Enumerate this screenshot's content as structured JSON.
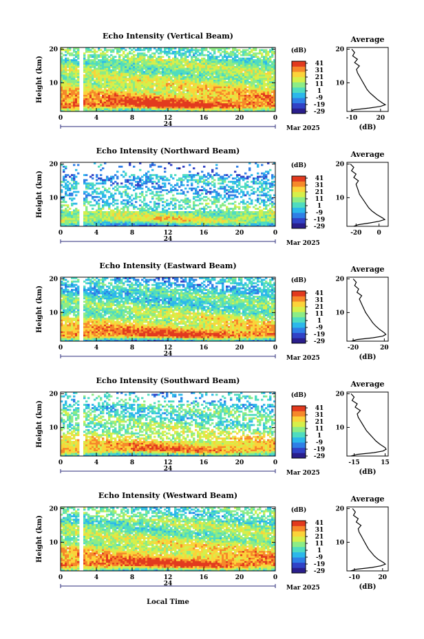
{
  "chart_data": [
    {
      "type": "heatmap",
      "title": "Echo Intensity (Vertical Beam)",
      "ylabel": "Height (km)",
      "x_ticks": [
        "0",
        "4",
        "8",
        "12",
        "16",
        "20",
        "0"
      ],
      "date_label": "24",
      "month_label": "Mar 2025",
      "y_ticks": [
        "20",
        "10"
      ],
      "ylim": [
        1.5,
        20.5
      ],
      "xlim": [
        0,
        24
      ],
      "colorbar": {
        "label": "(dB)",
        "ticks": [
          "41",
          "31",
          "21",
          "11",
          "1",
          "-9",
          "-19",
          "-29"
        ],
        "range": [
          -29,
          41
        ]
      },
      "data_gap_hour": 2.3,
      "average": {
        "title": "Average",
        "xlabel": "(dB)",
        "x_ticks": [
          "-10",
          "20"
        ],
        "xlim": [
          -15,
          28
        ],
        "profile": [
          [
            1.5,
            -11
          ],
          [
            2,
            -8
          ],
          [
            2.5,
            8
          ],
          [
            3,
            20
          ],
          [
            3.5,
            25
          ],
          [
            4,
            22
          ],
          [
            5,
            17
          ],
          [
            6,
            13
          ],
          [
            7,
            9
          ],
          [
            8,
            6
          ],
          [
            9,
            4
          ],
          [
            10,
            2
          ],
          [
            11,
            0
          ],
          [
            12,
            -2
          ],
          [
            13,
            -4
          ],
          [
            14,
            -5
          ],
          [
            15,
            -2
          ],
          [
            16,
            -7
          ],
          [
            17,
            -4
          ],
          [
            18,
            -9
          ],
          [
            19,
            -7
          ],
          [
            20,
            -10
          ]
        ]
      }
    },
    {
      "type": "heatmap",
      "title": "Echo Intensity (Northward Beam)",
      "ylabel": "Height (km)",
      "x_ticks": [
        "0",
        "4",
        "8",
        "12",
        "16",
        "20",
        "0"
      ],
      "date_label": "24",
      "month_label": "Mar 2025",
      "y_ticks": [
        "20",
        "10"
      ],
      "ylim": [
        1.5,
        20.5
      ],
      "xlim": [
        0,
        24
      ],
      "colorbar": {
        "label": "(dB)",
        "ticks": [
          "41",
          "31",
          "21",
          "11",
          "1",
          "-9",
          "-19",
          "-29"
        ],
        "range": [
          -29,
          41
        ]
      },
      "data_gap_hour": 2.3,
      "average": {
        "title": "Average",
        "xlabel": "",
        "x_ticks": [
          "-20",
          "0"
        ],
        "xlim": [
          -28,
          8
        ],
        "profile": [
          [
            1.5,
            -22
          ],
          [
            2,
            -18
          ],
          [
            2.5,
            -8
          ],
          [
            3,
            0
          ],
          [
            3.5,
            5
          ],
          [
            4,
            3
          ],
          [
            5,
            -2
          ],
          [
            6,
            -6
          ],
          [
            7,
            -9
          ],
          [
            8,
            -11
          ],
          [
            9,
            -13
          ],
          [
            10,
            -15
          ],
          [
            11,
            -17
          ],
          [
            12,
            -18
          ],
          [
            13,
            -19
          ],
          [
            14,
            -20
          ],
          [
            15,
            -18
          ],
          [
            16,
            -22
          ],
          [
            17,
            -20
          ],
          [
            18,
            -24
          ],
          [
            19,
            -22
          ],
          [
            20,
            -25
          ]
        ]
      }
    },
    {
      "type": "heatmap",
      "title": "Echo Intensity (Eastward Beam)",
      "ylabel": "Height (km)",
      "x_ticks": [
        "0",
        "4",
        "8",
        "12",
        "16",
        "20",
        "0"
      ],
      "date_label": "24",
      "month_label": "Mar 2025",
      "y_ticks": [
        "20",
        "10"
      ],
      "ylim": [
        1.5,
        20.5
      ],
      "xlim": [
        0,
        24
      ],
      "colorbar": {
        "label": "(dB)",
        "ticks": [
          "41",
          "31",
          "21",
          "11",
          "1",
          "-9",
          "-19",
          "-29"
        ],
        "range": [
          -29,
          41
        ]
      },
      "data_gap_hour": 2.3,
      "average": {
        "title": "Average",
        "xlabel": "(dB)",
        "x_ticks": [
          "-20",
          "20"
        ],
        "xlim": [
          -28,
          25
        ],
        "profile": [
          [
            1.5,
            -22
          ],
          [
            2,
            -15
          ],
          [
            2.5,
            5
          ],
          [
            3,
            18
          ],
          [
            3.5,
            22
          ],
          [
            4,
            20
          ],
          [
            5,
            14
          ],
          [
            6,
            9
          ],
          [
            7,
            5
          ],
          [
            8,
            2
          ],
          [
            9,
            -1
          ],
          [
            10,
            -4
          ],
          [
            11,
            -6
          ],
          [
            12,
            -8
          ],
          [
            13,
            -10
          ],
          [
            14,
            -12
          ],
          [
            15,
            -9
          ],
          [
            16,
            -15
          ],
          [
            17,
            -13
          ],
          [
            18,
            -18
          ],
          [
            19,
            -16
          ],
          [
            20,
            -20
          ]
        ]
      }
    },
    {
      "type": "heatmap",
      "title": "Echo Intensity (Southward Beam)",
      "ylabel": "Height (km)",
      "x_ticks": [
        "0",
        "4",
        "8",
        "12",
        "16",
        "20",
        "0"
      ],
      "date_label": "24",
      "month_label": "Mar 2025",
      "y_ticks": [
        "20",
        "10"
      ],
      "ylim": [
        1.5,
        20.5
      ],
      "xlim": [
        0,
        24
      ],
      "colorbar": {
        "label": "(dB)",
        "ticks": [
          "41",
          "31",
          "21",
          "11",
          "1",
          "-9",
          "-19",
          "-29"
        ],
        "range": [
          -29,
          41
        ]
      },
      "data_gap_hour": 2.3,
      "average": {
        "title": "Average",
        "xlabel": "(dB)",
        "x_ticks": [
          "-15",
          "15"
        ],
        "xlim": [
          -22,
          18
        ],
        "profile": [
          [
            1.5,
            -18
          ],
          [
            2,
            -12
          ],
          [
            2.5,
            4
          ],
          [
            3,
            13
          ],
          [
            3.5,
            16
          ],
          [
            4,
            15
          ],
          [
            5,
            10
          ],
          [
            6,
            6
          ],
          [
            7,
            3
          ],
          [
            8,
            0
          ],
          [
            9,
            -3
          ],
          [
            10,
            -5
          ],
          [
            11,
            -7
          ],
          [
            12,
            -9
          ],
          [
            13,
            -11
          ],
          [
            14,
            -12
          ],
          [
            15,
            -9
          ],
          [
            16,
            -14
          ],
          [
            17,
            -12
          ],
          [
            18,
            -17
          ],
          [
            19,
            -15
          ],
          [
            20,
            -18
          ]
        ]
      }
    },
    {
      "type": "heatmap",
      "title": "Echo Intensity (Westward Beam)",
      "ylabel": "Height (km)",
      "x_ticks": [
        "0",
        "4",
        "8",
        "12",
        "16",
        "20",
        "0"
      ],
      "date_label": "24",
      "month_label": "Mar 2025",
      "y_ticks": [
        "20",
        "10"
      ],
      "ylim": [
        1.5,
        20.5
      ],
      "xlim": [
        0,
        24
      ],
      "colorbar": {
        "label": "(dB)",
        "ticks": [
          "41",
          "31",
          "21",
          "11",
          "1",
          "-9",
          "-19",
          "-29"
        ],
        "range": [
          -29,
          41
        ]
      },
      "data_gap_hour": 2.3,
      "average": {
        "title": "Average",
        "xlabel": "(dB)",
        "x_ticks": [
          "-10",
          "20"
        ],
        "xlim": [
          -18,
          26
        ],
        "profile": [
          [
            1.5,
            -14
          ],
          [
            2,
            -8
          ],
          [
            2.5,
            8
          ],
          [
            3,
            18
          ],
          [
            3.5,
            23
          ],
          [
            4,
            21
          ],
          [
            5,
            15
          ],
          [
            6,
            11
          ],
          [
            7,
            8
          ],
          [
            8,
            5
          ],
          [
            9,
            3
          ],
          [
            10,
            1
          ],
          [
            11,
            -1
          ],
          [
            12,
            -3
          ],
          [
            13,
            -5
          ],
          [
            14,
            -6
          ],
          [
            15,
            -3
          ],
          [
            16,
            -8
          ],
          [
            17,
            -6
          ],
          [
            18,
            -11
          ],
          [
            19,
            -9
          ],
          [
            20,
            -12
          ]
        ]
      }
    }
  ],
  "footer": {
    "xlabel": "Local Time"
  },
  "colors": {
    "scale": [
      "#2a1e8c",
      "#3142c6",
      "#2f7fe6",
      "#2cb8ea",
      "#4fdcc0",
      "#8cec86",
      "#d6ef4a",
      "#fbd33a",
      "#f6882a",
      "#e23a1e"
    ]
  }
}
